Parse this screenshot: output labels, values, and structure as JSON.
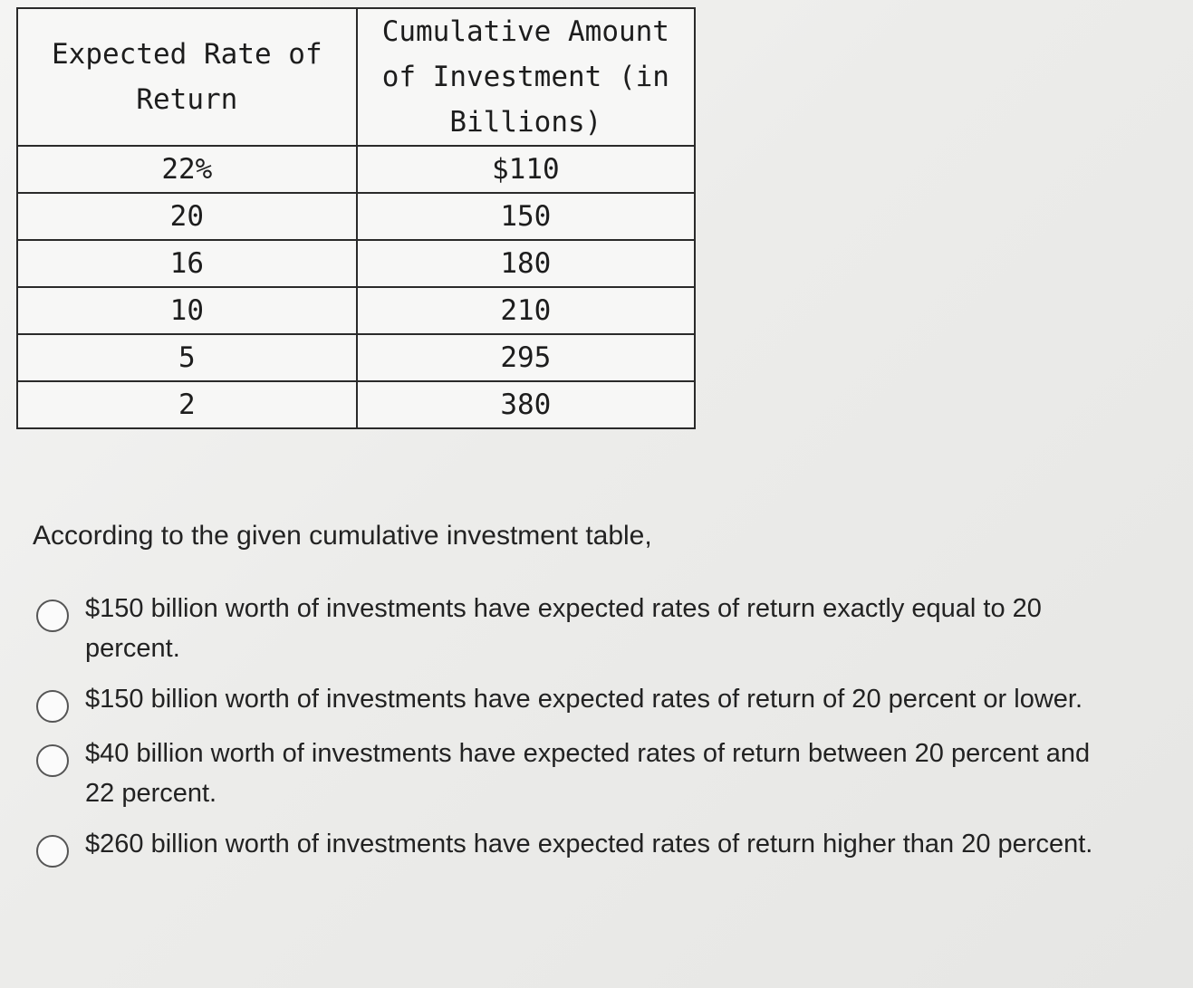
{
  "table": {
    "headers": [
      "Expected Rate of Return",
      "Cumulative Amount of Investment (in Billions)"
    ],
    "rows": [
      [
        "22%",
        "$110"
      ],
      [
        "20",
        "150"
      ],
      [
        "16",
        "180"
      ],
      [
        "10",
        "210"
      ],
      [
        "5",
        "295"
      ],
      [
        "2",
        "380"
      ]
    ]
  },
  "question": {
    "prompt": "According to the given cumulative investment table,"
  },
  "options": [
    {
      "label": "$150 billion worth of investments have expected rates of return exactly equal to 20 percent.",
      "selected": false
    },
    {
      "label": "$150 billion worth of investments have expected rates of return of 20 percent or lower.",
      "selected": false
    },
    {
      "label": "$40 billion worth of investments have expected rates of return between 20 percent and 22 percent.",
      "selected": false
    },
    {
      "label": "$260 billion worth of investments have expected rates of return higher than 20 percent.",
      "selected": false
    }
  ]
}
